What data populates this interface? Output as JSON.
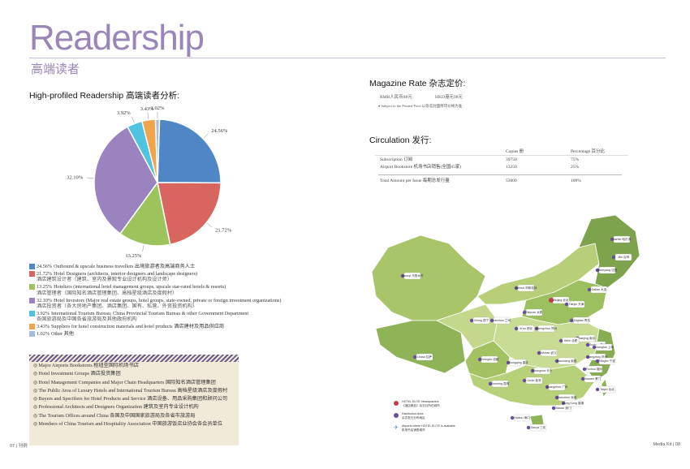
{
  "header": {
    "title": "Readership",
    "subtitle": "高端读者"
  },
  "readership": {
    "heading": "High-profiled Readership 高端读者分析:"
  },
  "chart_data": {
    "type": "pie",
    "title": "High-profiled Readership 高端读者分析:",
    "slices": [
      {
        "label": "Outbound & upscale business travellers",
        "value": 24.56,
        "color": "#4f86c6"
      },
      {
        "label": "Hotel Designers",
        "value": 21.72,
        "color": "#d9665e"
      },
      {
        "label": "Hoteliers",
        "value": 13.25,
        "color": "#9dc35c"
      },
      {
        "label": "Hotel Investors",
        "value": 32.1,
        "color": "#9b83c0"
      },
      {
        "label": "International Tourism Bureau",
        "value": 3.92,
        "color": "#4fc3df"
      },
      {
        "label": "Suppliers for hotel construction materials and hotel products",
        "value": 3.43,
        "color": "#f0a44c"
      },
      {
        "label": "Other",
        "value": 1.02,
        "color": "#a7bde0"
      }
    ],
    "data_labels": [
      "24.56%",
      "21.72%",
      "13.25%",
      "32.10%",
      "3.92%",
      "3.43%",
      "1.02%"
    ]
  },
  "legend": [
    {
      "pct": "24.56%",
      "text": "Outbound & upscale business travellers 出境旅游者及高端商务人士",
      "sub": "",
      "color": "#4f86c6"
    },
    {
      "pct": "21.72%",
      "text": "Hotel Designers (architects, interior designers and landscape designers)",
      "sub": "酒店建筑设计者（建筑、室内及景观专业设计机构及设计师）",
      "color": "#d9665e"
    },
    {
      "pct": "13.25%",
      "text": "Hoteliers (international hotel management groups, upscale star-rated hotels & resorts)",
      "sub": "酒店管理者（国际知名酒店管理集团、高档星级酒店及度假村）",
      "color": "#9dc35c"
    },
    {
      "pct": "32.10%",
      "text": "Hotel Investors (Major real estate groups, hotel groups, state-owned, private or foreign investment organizations)",
      "sub": "酒店投资者（各大房地产集团、酒店集团、国有、私营、外资投资机构）",
      "color": "#9b83c0"
    },
    {
      "pct": "3.92%",
      "text": "International Tourism Bureau, China Provincial Tourism Bureau & other Government Department",
      "sub": "各国旅游局及中国各省旅游局及其他政府机构",
      "color": "#4fc3df"
    },
    {
      "pct": "3.43%",
      "text": "Suppliers for hotel construction materials and hotel products 酒店建材及用品供应商",
      "sub": "",
      "color": "#f0a44c"
    },
    {
      "pct": "1.02%",
      "text": "Other 其他",
      "sub": "",
      "color": "#a7bde0"
    }
  ],
  "distribution": [
    "Major Airports Bookstores 枢纽型国际机场书店",
    "Hotel Investment Groups 酒店投资集团",
    "Hotel Management Companies and Major Chain Headquarters 国际知名酒店管理集团",
    "The Public Area of Luxury Hotels and International Tourism Bureau 高档星级酒店及度假村",
    "Buyers and Specifiers for Hotel Products and Service 酒店设备、用品采购集团和顾问公司",
    "Professional Architects and Designers Organization 建筑及室内专业设计机构",
    "The Tourism Offices around China 各国及中国国家旅游局及各省市旅游局",
    "Members of China Tourism and Hospitality Association 中国旅游饭店业协会各会员单位"
  ],
  "magazine_rate": {
    "heading": "Magazine Rate 杂志定价:",
    "rmb": "RMB人民币88元",
    "hkd": "HKD港元98元",
    "note": "♦ Subject to the Printed Price 以杂志封面所印价格为准"
  },
  "circulation": {
    "heading": "Circulation 发行:",
    "col_copies": "Copies 册",
    "col_pct": "Percentage 百分比",
    "rows": [
      {
        "label": "Subscription 订阅",
        "copies": "39750",
        "pct": "75%"
      },
      {
        "label": "Airport Bookstore 机场书店销售(全国65家)",
        "copies": "13250",
        "pct": "25%"
      }
    ],
    "total": {
      "label": "Total Amount per Issue 每期总发行量",
      "copies": "53000",
      "pct": "100%"
    }
  },
  "map": {
    "cities": [
      "Beijing 北京",
      "Harbin 哈尔滨",
      "Jilin 吉林",
      "Shenyang 沈阳",
      "Dalian 大连",
      "Tianjin 天津",
      "Qingdao 青岛",
      "Nanjing 南京",
      "Suzhou 苏州",
      "Shanghai 上海",
      "Hangzhou 杭州",
      "Ningbo 宁波",
      "Xiamen 厦门",
      "Fuzhou 福州",
      "Taipei 台北",
      "Shenzhen 深圳",
      "Guangzhou 广州",
      "Hong Kong 香港",
      "Macau 澳门",
      "Sanya 三亚",
      "Kunming 昆明",
      "Guilin 桂林",
      "Chengdu 成都",
      "Chongqing 重庆",
      "Xi'an 西安",
      "Wuhan 武汉",
      "Changsha 长沙",
      "Zhengzhou 郑州",
      "Taiyuan 太原",
      "Hohhot 呼和浩特",
      "Xining 西宁",
      "Lanzhou 兰州",
      "Urumqi 乌鲁木齐",
      "Lhasa 拉萨",
      "Hefei 合肥",
      "Nanchang 南昌",
      "Haikou 海口"
    ],
    "legend_hq": "HOTEL ELITE Headquarters",
    "legend_hq_cn": "《酒店精品》杂志社所在城市",
    "legend_dist": "Distribution Area",
    "legend_dist_cn": "杂志发行分布地区",
    "legend_air": "Airports where HOTEL ELITE is available",
    "legend_air_cn": "机场书店销售城市"
  },
  "footer": {
    "left": "07 | 刊例",
    "right": "Media Kit | 08"
  }
}
